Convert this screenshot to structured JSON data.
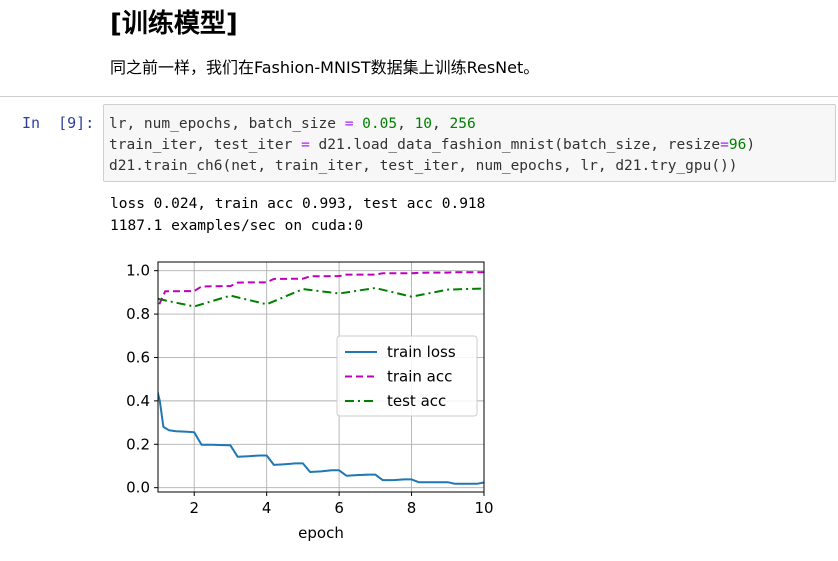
{
  "markdown": {
    "heading": "[训练模型]",
    "paragraph": "同之前一样，我们在Fashion-MNIST数据集上训练ResNet。"
  },
  "cell": {
    "prompt": "In  [9]:",
    "code_lines": [
      [
        [
          "lr, num_epochs, batch_size ",
          "plain"
        ],
        [
          "=",
          "op"
        ],
        [
          " ",
          "plain"
        ],
        [
          "0.05",
          "num"
        ],
        [
          ", ",
          "plain"
        ],
        [
          "10",
          "num"
        ],
        [
          ", ",
          "plain"
        ],
        [
          "256",
          "num"
        ]
      ],
      [
        [
          "train_iter, test_iter ",
          "plain"
        ],
        [
          "=",
          "op"
        ],
        [
          " d21.load_data_fashion_mnist(batch_size, resize",
          "plain"
        ],
        [
          "=",
          "op"
        ],
        [
          "96",
          "num"
        ],
        [
          ")",
          "plain"
        ]
      ],
      [
        [
          "d21.train_ch6(net, train_iter, test_iter, num_epochs, lr, d21.try_gpu())",
          "plain"
        ]
      ]
    ]
  },
  "output": {
    "lines": [
      "loss 0.024, train acc 0.993, test acc 0.918",
      "1187.1 examples/sec on cuda:0"
    ]
  },
  "colors": {
    "train_loss": "#1f77b4",
    "train_acc": "#bf00bf",
    "test_acc": "#008000",
    "prompt": "#303f9f",
    "grid": "#b0b0b0"
  },
  "chart_data": {
    "type": "line",
    "xlabel": "epoch",
    "ylabel": "",
    "title": "",
    "xlim": [
      1,
      10
    ],
    "ylim": [
      -0.02,
      1.04
    ],
    "xticks": [
      2,
      4,
      6,
      8,
      10
    ],
    "yticks": [
      0.0,
      0.2,
      0.4,
      0.6,
      0.8,
      1.0
    ],
    "grid": true,
    "legend_position": "center-right",
    "series": [
      {
        "name": "train loss",
        "style": "solid",
        "x": [
          0.9,
          1.05,
          1.15,
          1.3,
          1.5,
          1.8,
          2.0,
          2.2,
          2.5,
          2.8,
          3.0,
          3.2,
          3.5,
          3.8,
          4.0,
          4.2,
          4.5,
          4.8,
          5.0,
          5.2,
          5.5,
          5.8,
          6.0,
          6.2,
          6.5,
          6.8,
          7.0,
          7.2,
          7.5,
          7.8,
          8.0,
          8.2,
          8.5,
          8.8,
          9.0,
          9.2,
          9.5,
          9.8,
          10.0
        ],
        "y": [
          0.5,
          0.4,
          0.28,
          0.265,
          0.26,
          0.258,
          0.255,
          0.198,
          0.198,
          0.196,
          0.195,
          0.142,
          0.145,
          0.148,
          0.148,
          0.105,
          0.108,
          0.112,
          0.112,
          0.072,
          0.075,
          0.08,
          0.08,
          0.055,
          0.058,
          0.06,
          0.06,
          0.035,
          0.035,
          0.038,
          0.038,
          0.025,
          0.025,
          0.025,
          0.025,
          0.018,
          0.018,
          0.018,
          0.024
        ]
      },
      {
        "name": "train acc",
        "style": "dashed",
        "x": [
          0.9,
          1.05,
          1.2,
          1.5,
          1.8,
          2.0,
          2.2,
          2.5,
          2.8,
          3.0,
          3.2,
          3.5,
          3.8,
          4.0,
          4.2,
          4.5,
          4.8,
          5.0,
          5.2,
          5.5,
          5.8,
          6.0,
          6.2,
          6.5,
          6.8,
          7.0,
          7.2,
          7.5,
          7.8,
          8.0,
          8.2,
          8.5,
          8.8,
          9.0,
          9.2,
          9.5,
          9.8,
          10.0
        ],
        "y": [
          0.8,
          0.85,
          0.905,
          0.905,
          0.906,
          0.906,
          0.927,
          0.928,
          0.929,
          0.929,
          0.945,
          0.946,
          0.946,
          0.946,
          0.962,
          0.962,
          0.963,
          0.963,
          0.974,
          0.974,
          0.975,
          0.975,
          0.982,
          0.982,
          0.982,
          0.982,
          0.988,
          0.988,
          0.988,
          0.988,
          0.99,
          0.991,
          0.991,
          0.991,
          0.993,
          0.993,
          0.993,
          0.993
        ]
      },
      {
        "name": "test acc",
        "style": "dashdot",
        "x": [
          1,
          2,
          3,
          4,
          5,
          6,
          7,
          8,
          9,
          10
        ],
        "y": [
          0.87,
          0.835,
          0.885,
          0.845,
          0.915,
          0.895,
          0.92,
          0.88,
          0.913,
          0.918
        ]
      }
    ]
  }
}
